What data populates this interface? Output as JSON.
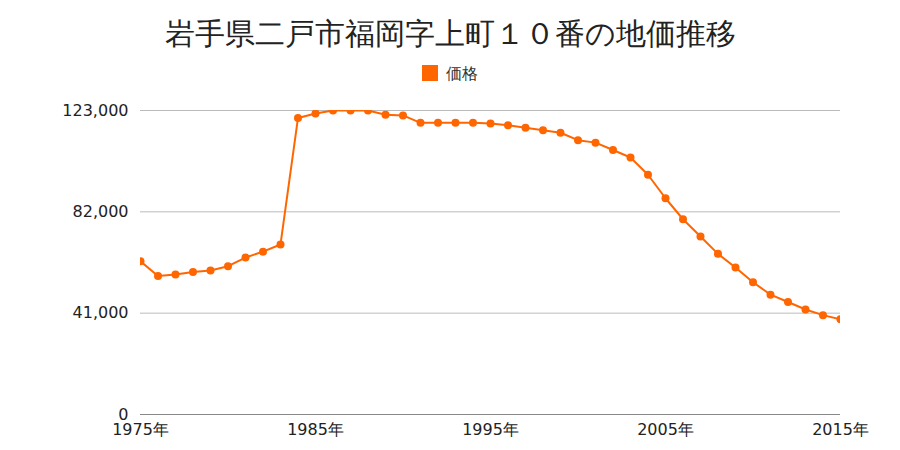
{
  "chart_data": {
    "type": "line",
    "title": "岩手県二戸市福岡字上町１０番の地価推移",
    "x": [
      1975,
      1976,
      1977,
      1978,
      1979,
      1980,
      1981,
      1982,
      1983,
      1984,
      1985,
      1986,
      1987,
      1988,
      1989,
      1990,
      1991,
      1992,
      1993,
      1994,
      1995,
      1996,
      1997,
      1998,
      1999,
      2000,
      2001,
      2002,
      2003,
      2004,
      2005,
      2006,
      2007,
      2008,
      2009,
      2010,
      2011,
      2012,
      2013,
      2014,
      2015
    ],
    "series": [
      {
        "name": "価格",
        "color": "#ff6600",
        "marker": "circle",
        "values": [
          62000,
          56000,
          56600,
          57700,
          58300,
          60000,
          63500,
          65900,
          68800,
          120000,
          121800,
          123000,
          123000,
          123000,
          121300,
          121000,
          118000,
          118000,
          118000,
          118000,
          117700,
          117000,
          116000,
          115000,
          114000,
          111000,
          110000,
          107000,
          104000,
          97000,
          87500,
          79000,
          72000,
          65000,
          59500,
          53500,
          48500,
          45500,
          42500,
          40200,
          38500
        ]
      }
    ],
    "xlim": [
      1975,
      2015
    ],
    "xticks": [
      {
        "value": 1975,
        "label": "1975年"
      },
      {
        "value": 1985,
        "label": "1985年"
      },
      {
        "value": 1995,
        "label": "1995年"
      },
      {
        "value": 2005,
        "label": "2005年"
      },
      {
        "value": 2015,
        "label": "2015年"
      }
    ],
    "ylim": [
      0,
      123000
    ],
    "yticks": [
      0,
      {
        "value": 41000,
        "label": "41,000"
      },
      {
        "value": 82000,
        "label": "82,000"
      },
      {
        "value": 123000,
        "label": "123,000"
      }
    ],
    "grid": true,
    "legend": "top"
  }
}
